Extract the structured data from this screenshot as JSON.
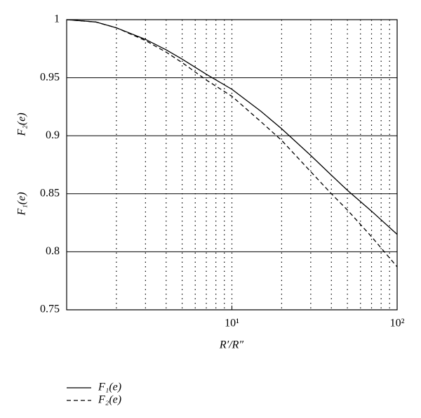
{
  "chart_data": {
    "type": "line",
    "xlabel": "R′/R″",
    "ylabel": [
      "F₂(e)",
      "F₁(e)"
    ],
    "x": [
      1,
      1.5,
      2,
      3,
      4,
      5,
      7,
      10,
      15,
      20,
      30,
      40,
      50,
      70,
      100
    ],
    "series": [
      {
        "name": "F₁(e)",
        "color": "#000000",
        "linestyle": "solid",
        "values": [
          1,
          0.998,
          0.993,
          0.983,
          0.974,
          0.966,
          0.953,
          0.94,
          0.921,
          0.906,
          0.883,
          0.866,
          0.853,
          0.835,
          0.815
        ]
      },
      {
        "name": "F₂(e)",
        "color": "#000000",
        "linestyle": "dashed",
        "values": [
          1,
          0.998,
          0.993,
          0.982,
          0.972,
          0.963,
          0.948,
          0.934,
          0.912,
          0.896,
          0.869,
          0.85,
          0.836,
          0.813,
          0.787
        ]
      }
    ],
    "xscale": "log",
    "xlim": [
      1,
      100
    ],
    "xticks": [
      {
        "value": 10,
        "label": "10¹"
      },
      {
        "value": 100,
        "label": "10²"
      }
    ],
    "xgrid": [
      2,
      3,
      4,
      5,
      6,
      7,
      8,
      9,
      10,
      20,
      30,
      40,
      50,
      60,
      70,
      80,
      90
    ],
    "ylim": [
      0.75,
      1
    ],
    "yticks": [
      0.75,
      0.8,
      0.85,
      0.9,
      0.95,
      1
    ],
    "grid": true,
    "legend": "bottom"
  }
}
